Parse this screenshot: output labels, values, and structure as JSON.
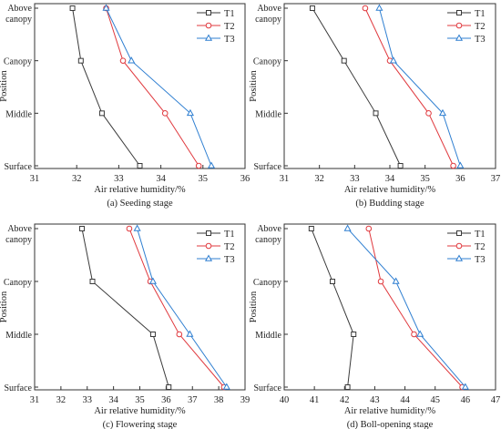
{
  "chart_data": [
    {
      "type": "line",
      "caption": "(a) Seeding stage",
      "xlabel": "Air relative humidity/%",
      "ylabel": "Position",
      "categories": [
        "Above canopy",
        "Canopy",
        "Middle",
        "Surface"
      ],
      "category_lines": [
        [
          "Above",
          "canopy"
        ],
        [
          "Canopy"
        ],
        [
          "Middle"
        ],
        [
          "Surface"
        ]
      ],
      "xlim": [
        31,
        36
      ],
      "xticks": [
        31,
        32,
        33,
        34,
        35,
        36
      ],
      "series": [
        {
          "name": "T1",
          "marker": "square",
          "color": "#3a3a3a",
          "values": [
            31.9,
            32.1,
            32.6,
            33.5
          ]
        },
        {
          "name": "T2",
          "marker": "circle",
          "color": "#e0393e",
          "values": [
            32.7,
            33.1,
            34.1,
            34.9
          ]
        },
        {
          "name": "T3",
          "marker": "triangle",
          "color": "#2f7fd1",
          "values": [
            32.7,
            33.3,
            34.7,
            35.2
          ]
        }
      ]
    },
    {
      "type": "line",
      "caption": "(b) Budding stage",
      "xlabel": "Air relative humidity/%",
      "ylabel": "Position",
      "categories": [
        "Above canopy",
        "Canopy",
        "Middle",
        "Surface"
      ],
      "category_lines": [
        [
          "Above",
          "canopy"
        ],
        [
          "Canopy"
        ],
        [
          "Middle"
        ],
        [
          "Surface"
        ]
      ],
      "xlim": [
        31,
        37
      ],
      "xticks": [
        31,
        32,
        33,
        34,
        35,
        36,
        37
      ],
      "series": [
        {
          "name": "T1",
          "marker": "square",
          "color": "#3a3a3a",
          "values": [
            31.8,
            32.7,
            33.6,
            34.3
          ]
        },
        {
          "name": "T2",
          "marker": "circle",
          "color": "#e0393e",
          "values": [
            33.3,
            34.0,
            35.1,
            35.8
          ]
        },
        {
          "name": "T3",
          "marker": "triangle",
          "color": "#2f7fd1",
          "values": [
            33.7,
            34.1,
            35.5,
            36.0
          ]
        }
      ]
    },
    {
      "type": "line",
      "caption": "(c) Flowering stage",
      "xlabel": "Air relative humidity/%",
      "ylabel": "Position",
      "categories": [
        "Above canopy",
        "Canopy",
        "Middle",
        "Surface"
      ],
      "category_lines": [
        [
          "Above",
          "canopy"
        ],
        [
          "Canopy"
        ],
        [
          "Middle"
        ],
        [
          "Surface"
        ]
      ],
      "xlim": [
        31,
        39
      ],
      "xticks": [
        31,
        32,
        33,
        34,
        35,
        36,
        37,
        38,
        39
      ],
      "series": [
        {
          "name": "T1",
          "marker": "square",
          "color": "#3a3a3a",
          "values": [
            32.8,
            33.2,
            35.5,
            36.1
          ]
        },
        {
          "name": "T2",
          "marker": "circle",
          "color": "#e0393e",
          "values": [
            34.6,
            35.4,
            36.5,
            38.2
          ]
        },
        {
          "name": "T3",
          "marker": "triangle",
          "color": "#2f7fd1",
          "values": [
            34.9,
            35.5,
            36.9,
            38.3
          ]
        }
      ]
    },
    {
      "type": "line",
      "caption": "(d) Boll-opening stage",
      "xlabel": "Air relative humidity/%",
      "ylabel": "Position",
      "categories": [
        "Above canopy",
        "Canopy",
        "Middle",
        "Surface"
      ],
      "category_lines": [
        [
          "Above",
          "canopy"
        ],
        [
          "Canopy"
        ],
        [
          "Middle"
        ],
        [
          "Surface"
        ]
      ],
      "xlim": [
        40,
        47
      ],
      "xticks": [
        40,
        41,
        42,
        43,
        44,
        45,
        46,
        47
      ],
      "series": [
        {
          "name": "T1",
          "marker": "square",
          "color": "#3a3a3a",
          "values": [
            40.9,
            41.6,
            42.3,
            42.1
          ]
        },
        {
          "name": "T2",
          "marker": "circle",
          "color": "#e0393e",
          "values": [
            42.8,
            43.2,
            44.3,
            45.9
          ]
        },
        {
          "name": "T3",
          "marker": "triangle",
          "color": "#2f7fd1",
          "values": [
            42.1,
            43.7,
            44.5,
            46.0
          ]
        }
      ]
    }
  ]
}
